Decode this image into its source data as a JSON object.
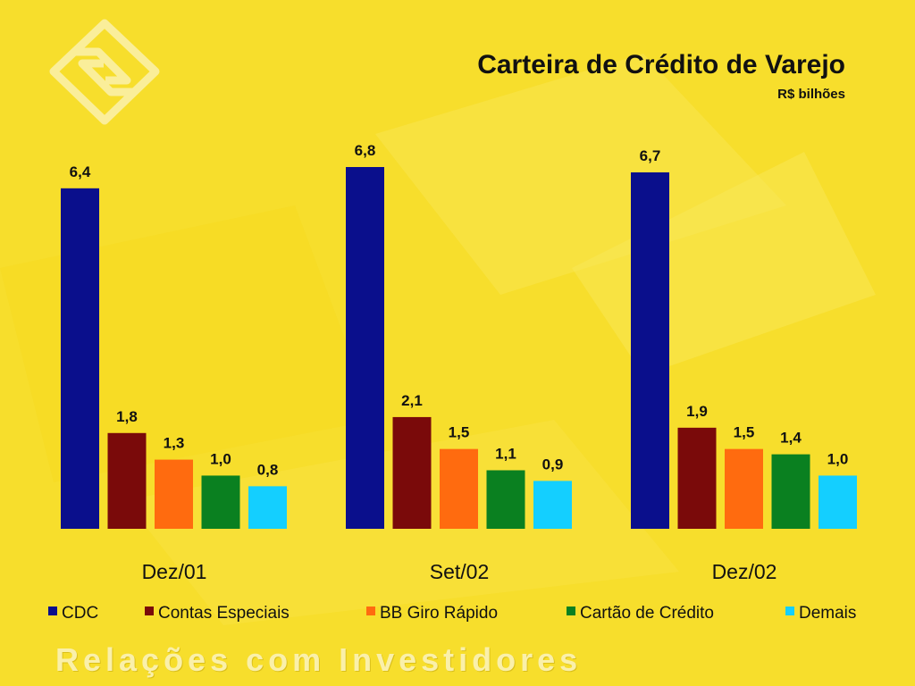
{
  "slide": {
    "title": "Carteira de Crédito de Varejo",
    "subtitle": "R$ bilhões",
    "footer": "Relações com Investidores",
    "background_color": "#F7DE2C",
    "logo_icon": "banco-do-brasil-logo-icon"
  },
  "chart_data": {
    "type": "bar",
    "title": "Carteira de Crédito de Varejo",
    "subtitle": "R$ bilhões",
    "xlabel": "",
    "ylabel": "",
    "ylim": [
      0,
      7
    ],
    "grid": false,
    "legend_position": "bottom",
    "categories": [
      "Dez/01",
      "Set/02",
      "Dez/02"
    ],
    "series": [
      {
        "name": "CDC",
        "color": "#0A0F8C",
        "values": [
          6.4,
          6.8,
          6.7
        ],
        "labels": [
          "6,4",
          "6,8",
          "6,7"
        ]
      },
      {
        "name": "Contas Especiais",
        "color": "#7A0A0A",
        "values": [
          1.8,
          2.1,
          1.9
        ],
        "labels": [
          "1,8",
          "2,1",
          "1,9"
        ]
      },
      {
        "name": "BB Giro Rápido",
        "color": "#FF6B0F",
        "values": [
          1.3,
          1.5,
          1.5
        ],
        "labels": [
          "1,3",
          "1,5",
          "1,5"
        ]
      },
      {
        "name": "Cartão de Crédito",
        "color": "#0A8020",
        "values": [
          1.0,
          1.1,
          1.4
        ],
        "labels": [
          "1,0",
          "1,1",
          "1,4"
        ]
      },
      {
        "name": "Demais",
        "color": "#14CFFF",
        "values": [
          0.8,
          0.9,
          1.0
        ],
        "labels": [
          "0,8",
          "0,9",
          "1,0"
        ]
      }
    ]
  }
}
